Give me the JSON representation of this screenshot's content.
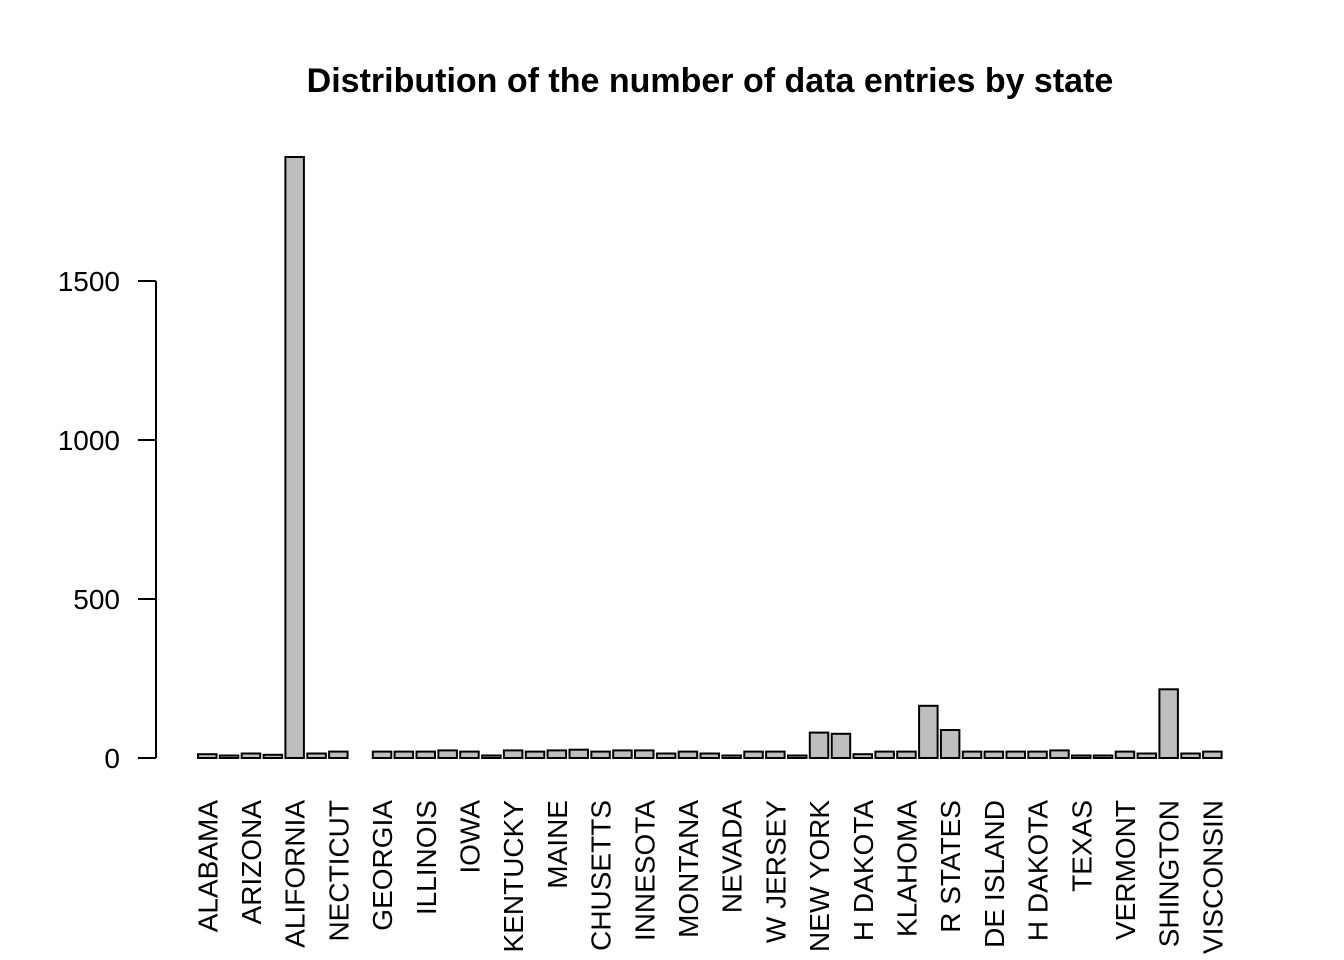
{
  "chart_data": {
    "type": "bar",
    "title": "Distribution of the number of data entries by state",
    "xlabel": "",
    "ylabel": "",
    "ylim": [
      0,
      1900
    ],
    "yticks": [
      0,
      500,
      1000,
      1500
    ],
    "grid": false,
    "bar_color": "#bebebe",
    "categories": [
      "ALABAMA",
      "",
      "ARIZONA",
      "",
      "ALIFORNIA",
      "",
      "NECTICUT",
      "",
      "GEORGIA",
      "",
      "ILLINOIS",
      "",
      "IOWA",
      "",
      "KENTUCKY",
      "",
      "MAINE",
      "",
      "CHUSETTS",
      "",
      "INNESOTA",
      "",
      "MONTANA",
      "",
      "NEVADA",
      "",
      "W JERSEY",
      "",
      "NEW YORK",
      "",
      "H DAKOTA",
      "",
      "KLAHOMA",
      "",
      "R STATES",
      "",
      "DE ISLAND",
      "",
      "H DAKOTA",
      "",
      "TEXAS",
      "",
      "VERMONT",
      "",
      "SHINGTON",
      "",
      "VISCONSIN"
    ],
    "values": [
      12,
      8,
      14,
      10,
      1890,
      14,
      20,
      0,
      20,
      20,
      20,
      24,
      20,
      8,
      24,
      20,
      24,
      26,
      20,
      24,
      24,
      14,
      20,
      14,
      8,
      20,
      20,
      8,
      80,
      76,
      12,
      20,
      20,
      164,
      88,
      20,
      20,
      20,
      20,
      24,
      8,
      8,
      20,
      14,
      216,
      14,
      20
    ]
  }
}
